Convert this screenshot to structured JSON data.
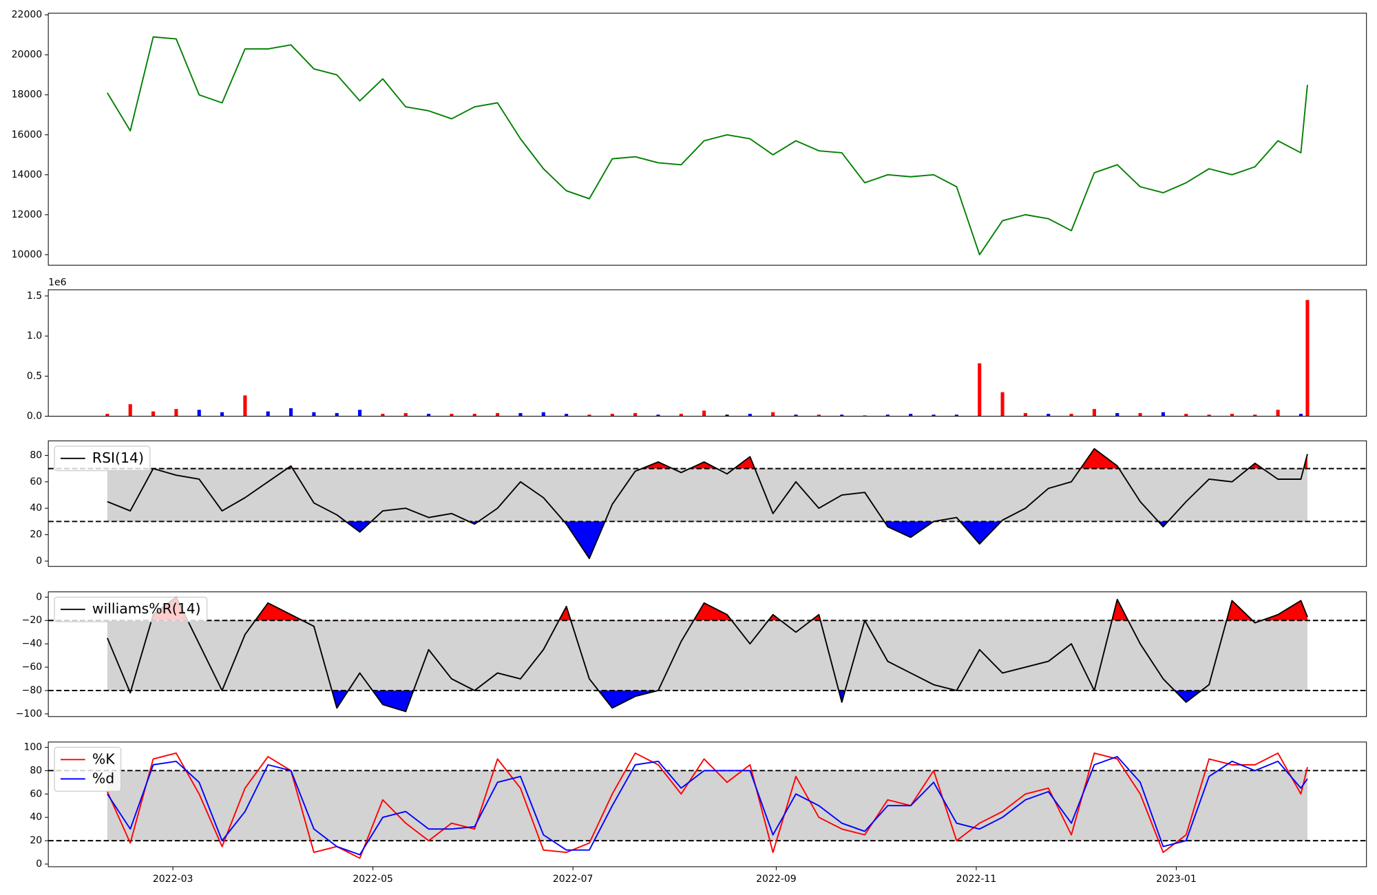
{
  "chart_data": [
    {
      "type": "line",
      "x": [
        39,
        46,
        53,
        60,
        67,
        74,
        81,
        88,
        95,
        102,
        109,
        116,
        123,
        130,
        137,
        144,
        151,
        158,
        165,
        172,
        179,
        186,
        193,
        200,
        207,
        214,
        221,
        228,
        235,
        242,
        249,
        256,
        263,
        270,
        277,
        284,
        291,
        298,
        305,
        312,
        319,
        326,
        333,
        340,
        347,
        354,
        361,
        368,
        375,
        382,
        389,
        396,
        403,
        405
      ],
      "xlim": [
        21,
        423
      ],
      "ylim": [
        9473,
        22088
      ],
      "yticks": [
        10000,
        12000,
        14000,
        16000,
        18000,
        20000,
        22000
      ],
      "series": [
        {
          "color": "#008000",
          "values": [
            18100,
            16200,
            20900,
            20800,
            18000,
            17600,
            20300,
            20300,
            20500,
            19300,
            19000,
            17700,
            18800,
            17400,
            17200,
            16800,
            17400,
            17600,
            15800,
            14300,
            13200,
            12800,
            14800,
            14900,
            14600,
            14500,
            15700,
            16000,
            15800,
            15000,
            15700,
            15200,
            15100,
            13600,
            14000,
            13900,
            14000,
            13400,
            10000,
            11700,
            12000,
            11800,
            11200,
            14100,
            14500,
            13400,
            13100,
            13600,
            14300,
            14000,
            14400,
            15700,
            15100,
            18500
          ]
        }
      ]
    },
    {
      "type": "bar",
      "x": [
        39,
        46,
        53,
        60,
        67,
        74,
        81,
        88,
        95,
        102,
        109,
        116,
        123,
        130,
        137,
        144,
        151,
        158,
        165,
        172,
        179,
        186,
        193,
        200,
        207,
        214,
        221,
        228,
        235,
        242,
        249,
        256,
        263,
        270,
        277,
        284,
        291,
        298,
        305,
        312,
        319,
        326,
        333,
        340,
        347,
        354,
        361,
        368,
        375,
        382,
        389,
        396,
        403,
        405
      ],
      "xlim": [
        21,
        423
      ],
      "ylim": [
        0,
        1577000
      ],
      "offset_label": "1e6",
      "yticks": [
        {
          "value": 0,
          "label": "0.0"
        },
        {
          "value": 500000,
          "label": "0.5"
        },
        {
          "value": 1000000,
          "label": "1.0"
        },
        {
          "value": 1500000,
          "label": "1.5"
        }
      ],
      "series": [
        {
          "values": [
            30000,
            150000,
            60000,
            90000,
            80000,
            50000,
            260000,
            60000,
            100000,
            50000,
            40000,
            80000,
            30000,
            40000,
            30000,
            30000,
            30000,
            40000,
            40000,
            50000,
            30000,
            20000,
            30000,
            40000,
            20000,
            30000,
            70000,
            20000,
            30000,
            50000,
            20000,
            20000,
            20000,
            10000,
            20000,
            30000,
            20000,
            20000,
            660000,
            300000,
            40000,
            30000,
            30000,
            90000,
            40000,
            40000,
            50000,
            30000,
            20000,
            30000,
            20000,
            80000,
            30000,
            1450000
          ],
          "colors": [
            "red",
            "red",
            "red",
            "red",
            "blue",
            "blue",
            "red",
            "blue",
            "blue",
            "blue",
            "blue",
            "blue",
            "red",
            "red",
            "blue",
            "red",
            "red",
            "red",
            "blue",
            "blue",
            "blue",
            "red",
            "red",
            "red",
            "blue",
            "red",
            "red",
            "black",
            "blue",
            "red",
            "blue",
            "red",
            "blue",
            "red",
            "blue",
            "blue",
            "blue",
            "blue",
            "red",
            "red",
            "red",
            "blue",
            "red",
            "red",
            "blue",
            "red",
            "blue",
            "red",
            "red",
            "red",
            "red",
            "red",
            "blue",
            "red"
          ]
        }
      ]
    },
    {
      "type": "line",
      "x": [
        39,
        46,
        53,
        60,
        67,
        74,
        81,
        88,
        95,
        102,
        109,
        116,
        123,
        130,
        137,
        144,
        151,
        158,
        165,
        172,
        179,
        186,
        193,
        200,
        207,
        214,
        221,
        228,
        235,
        242,
        249,
        256,
        263,
        270,
        277,
        284,
        291,
        298,
        305,
        312,
        319,
        326,
        333,
        340,
        347,
        354,
        361,
        368,
        375,
        382,
        389,
        396,
        403,
        405
      ],
      "xlim": [
        21,
        423
      ],
      "ylim": [
        -4,
        91
      ],
      "yticks": [
        0,
        20,
        40,
        60,
        80
      ],
      "threshold_lines": [
        30,
        70
      ],
      "band_color": "#d3d3d3",
      "fill_above": "#ff0000",
      "fill_below": "#0000ff",
      "series": [
        {
          "name": "RSI(14)",
          "color": "#000000",
          "values": [
            45,
            38,
            70,
            65,
            62,
            38,
            48,
            60,
            72,
            44,
            35,
            22,
            38,
            40,
            33,
            36,
            28,
            40,
            60,
            48,
            28,
            2,
            43,
            68,
            75,
            67,
            75,
            66,
            79,
            36,
            60,
            40,
            50,
            52,
            26,
            18,
            30,
            33,
            13,
            31,
            40,
            55,
            60,
            85,
            72,
            45,
            26,
            45,
            62,
            60,
            74,
            62,
            62,
            81
          ]
        }
      ]
    },
    {
      "type": "line",
      "x": [
        39,
        46,
        53,
        60,
        67,
        74,
        81,
        88,
        95,
        102,
        109,
        116,
        123,
        130,
        137,
        144,
        151,
        158,
        165,
        172,
        179,
        186,
        193,
        200,
        207,
        214,
        221,
        228,
        235,
        242,
        249,
        256,
        263,
        270,
        277,
        284,
        291,
        298,
        305,
        312,
        319,
        326,
        333,
        340,
        347,
        354,
        361,
        368,
        375,
        382,
        389,
        396,
        403,
        405
      ],
      "xlim": [
        21,
        423
      ],
      "ylim": [
        -102.3,
        4.5
      ],
      "yticks": [
        {
          "value": -100,
          "label": "−100"
        },
        {
          "value": -80,
          "label": "−80"
        },
        {
          "value": -60,
          "label": "−60"
        },
        {
          "value": -40,
          "label": "−40"
        },
        {
          "value": -20,
          "label": "−20"
        },
        0
      ],
      "threshold_lines": [
        -80,
        -20
      ],
      "band_color": "#d3d3d3",
      "fill_above": "#ff0000",
      "fill_below": "#0000ff",
      "series": [
        {
          "name": "williams%R(14)",
          "color": "#000000",
          "values": [
            -35,
            -82,
            -15,
            0,
            -40,
            -80,
            -32,
            -5,
            -15,
            -25,
            -95,
            -65,
            -92,
            -98,
            -45,
            -70,
            -80,
            -65,
            -70,
            -45,
            -8,
            -70,
            -95,
            -85,
            -80,
            -38,
            -5,
            -15,
            -40,
            -15,
            -30,
            -15,
            -90,
            -20,
            -55,
            -65,
            -75,
            -80,
            -45,
            -65,
            -60,
            -55,
            -40,
            -80,
            -2,
            -40,
            -70,
            -90,
            -75,
            -3,
            -22,
            -15,
            -3,
            -17
          ]
        }
      ]
    },
    {
      "type": "line",
      "x": [
        39,
        46,
        53,
        60,
        67,
        74,
        81,
        88,
        95,
        102,
        109,
        116,
        123,
        130,
        137,
        144,
        151,
        158,
        165,
        172,
        179,
        186,
        193,
        200,
        207,
        214,
        221,
        228,
        235,
        242,
        249,
        256,
        263,
        270,
        277,
        284,
        291,
        298,
        305,
        312,
        319,
        326,
        333,
        340,
        347,
        354,
        361,
        368,
        375,
        382,
        389,
        396,
        403,
        405
      ],
      "xlim": [
        21,
        423
      ],
      "ylim": [
        -2.3,
        104.5
      ],
      "yticks": [
        0,
        20,
        40,
        60,
        80,
        100
      ],
      "xticks": [
        {
          "value": 59,
          "label": "2022-03"
        },
        {
          "value": 120,
          "label": "2022-05"
        },
        {
          "value": 181,
          "label": "2022-07"
        },
        {
          "value": 243,
          "label": "2022-09"
        },
        {
          "value": 304,
          "label": "2022-11"
        },
        {
          "value": 365,
          "label": "2023-01"
        }
      ],
      "threshold_lines": [
        20,
        80
      ],
      "band_color": "#d3d3d3",
      "series": [
        {
          "name": "%K",
          "color": "#ff0000",
          "values": [
            62,
            18,
            90,
            95,
            60,
            15,
            65,
            92,
            80,
            10,
            15,
            5,
            55,
            35,
            20,
            35,
            30,
            90,
            65,
            12,
            10,
            18,
            60,
            95,
            85,
            60,
            90,
            70,
            85,
            10,
            75,
            40,
            30,
            25,
            55,
            50,
            80,
            20,
            35,
            45,
            60,
            65,
            25,
            95,
            90,
            60,
            10,
            25,
            90,
            85,
            85,
            95,
            60,
            83
          ]
        },
        {
          "name": "%d",
          "color": "#0000ff",
          "values": [
            60,
            30,
            85,
            88,
            70,
            20,
            45,
            85,
            80,
            30,
            15,
            8,
            40,
            45,
            30,
            30,
            32,
            70,
            75,
            25,
            12,
            12,
            50,
            85,
            88,
            65,
            80,
            80,
            80,
            25,
            60,
            50,
            35,
            28,
            50,
            50,
            70,
            35,
            30,
            40,
            55,
            62,
            35,
            85,
            92,
            70,
            15,
            20,
            75,
            88,
            80,
            88,
            65,
            73
          ]
        }
      ]
    }
  ]
}
